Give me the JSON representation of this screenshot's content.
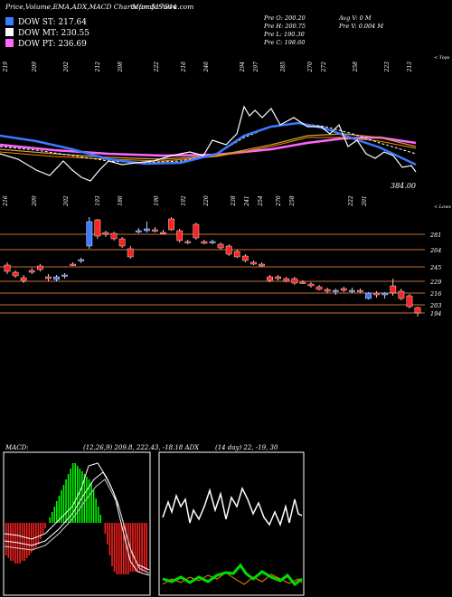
{
  "header": {
    "title": "Price,Volume,EMA,ADX,MACD Charts for 517544",
    "site": "MunafaSutra.com"
  },
  "dow": [
    {
      "label": "DOW ST: 217.64",
      "color": "#3a7bff"
    },
    {
      "label": "DOW MT: 230.55",
      "color": "#ffffff"
    },
    {
      "label": "DOW PT: 236.69",
      "color": "#ff66ff"
    }
  ],
  "stats": {
    "o": "Pre   O: 200.20",
    "h": "Pre   H: 200.75",
    "l": "Pre   L: 190.30",
    "c": "Pre   C: 198.60",
    "avg_v": "Avg V: 0   M",
    "pre_v": "Pre   V: 0.004   M"
  },
  "labels": {
    "tops": "< Tops",
    "lows": "< Lows",
    "price_tag": "384.00",
    "macd": "MACD:",
    "macd_params": "(12,26,9) 209.8, 222.43, -18.18 ADX",
    "adx_params": "(14 day) 22, -19, 30"
  },
  "top_labels": [
    "219",
    "209",
    "202",
    "212",
    "208",
    "222",
    "216",
    "246",
    "294",
    "297",
    "285",
    "270",
    "272",
    "258",
    "223",
    "213"
  ],
  "low_labels": [
    "216",
    "209",
    "202",
    "193",
    "186",
    "190",
    "192",
    "220",
    "238",
    "241",
    "254",
    "270",
    "258",
    "222",
    "201"
  ],
  "chart_data": {
    "type": "candlestick",
    "price_levels": [
      281,
      264,
      245,
      229,
      216,
      203,
      194
    ],
    "ylim": [
      185,
      300
    ],
    "candles": [
      {
        "o": 247,
        "h": 250,
        "l": 237,
        "c": 240
      },
      {
        "o": 239,
        "h": 241,
        "l": 233,
        "c": 235
      },
      {
        "o": 233,
        "h": 236,
        "l": 227,
        "c": 230
      },
      {
        "o": 241,
        "h": 244,
        "l": 237,
        "c": 239
      },
      {
        "o": 246,
        "h": 248,
        "l": 240,
        "c": 242
      },
      {
        "o": 234,
        "h": 237,
        "l": 229,
        "c": 232
      },
      {
        "o": 231,
        "h": 236,
        "l": 229,
        "c": 234
      },
      {
        "o": 235,
        "h": 238,
        "l": 232,
        "c": 236
      },
      {
        "o": 248,
        "h": 250,
        "l": 246,
        "c": 247
      },
      {
        "o": 252,
        "h": 255,
        "l": 249,
        "c": 253
      },
      {
        "o": 268,
        "h": 300,
        "l": 265,
        "c": 295
      },
      {
        "o": 297,
        "h": 298,
        "l": 276,
        "c": 279
      },
      {
        "o": 283,
        "h": 285,
        "l": 278,
        "c": 281
      },
      {
        "o": 282,
        "h": 284,
        "l": 274,
        "c": 276
      },
      {
        "o": 276,
        "h": 278,
        "l": 266,
        "c": 268
      },
      {
        "o": 265,
        "h": 268,
        "l": 254,
        "c": 256
      },
      {
        "o": 284,
        "h": 288,
        "l": 282,
        "c": 285
      },
      {
        "o": 285,
        "h": 295,
        "l": 283,
        "c": 287
      },
      {
        "o": 286,
        "h": 289,
        "l": 283,
        "c": 285
      },
      {
        "o": 283,
        "h": 286,
        "l": 281,
        "c": 282
      },
      {
        "o": 298,
        "h": 300,
        "l": 285,
        "c": 286
      },
      {
        "o": 285,
        "h": 287,
        "l": 272,
        "c": 274
      },
      {
        "o": 273,
        "h": 275,
        "l": 270,
        "c": 272
      },
      {
        "o": 292,
        "h": 294,
        "l": 275,
        "c": 277
      },
      {
        "o": 273,
        "h": 275,
        "l": 270,
        "c": 271
      },
      {
        "o": 272,
        "h": 275,
        "l": 270,
        "c": 273
      },
      {
        "o": 270,
        "h": 272,
        "l": 264,
        "c": 266
      },
      {
        "o": 268,
        "h": 270,
        "l": 257,
        "c": 259
      },
      {
        "o": 262,
        "h": 264,
        "l": 255,
        "c": 256
      },
      {
        "o": 257,
        "h": 259,
        "l": 250,
        "c": 252
      },
      {
        "o": 250,
        "h": 252,
        "l": 247,
        "c": 248
      },
      {
        "o": 248,
        "h": 250,
        "l": 245,
        "c": 246
      },
      {
        "o": 234,
        "h": 236,
        "l": 228,
        "c": 230
      },
      {
        "o": 234,
        "h": 236,
        "l": 230,
        "c": 232
      },
      {
        "o": 232,
        "h": 234,
        "l": 228,
        "c": 229
      },
      {
        "o": 232,
        "h": 234,
        "l": 225,
        "c": 227
      },
      {
        "o": 228,
        "h": 230,
        "l": 226,
        "c": 227
      },
      {
        "o": 226,
        "h": 228,
        "l": 222,
        "c": 224
      },
      {
        "o": 223,
        "h": 225,
        "l": 219,
        "c": 220
      },
      {
        "o": 220,
        "h": 222,
        "l": 216,
        "c": 218
      },
      {
        "o": 218,
        "h": 221,
        "l": 214,
        "c": 219
      },
      {
        "o": 221,
        "h": 223,
        "l": 217,
        "c": 219
      },
      {
        "o": 219,
        "h": 222,
        "l": 216,
        "c": 219
      },
      {
        "o": 219,
        "h": 221,
        "l": 216,
        "c": 218
      },
      {
        "o": 210,
        "h": 217,
        "l": 209,
        "c": 216
      },
      {
        "o": 216,
        "h": 218,
        "l": 211,
        "c": 214
      },
      {
        "o": 214,
        "h": 217,
        "l": 210,
        "c": 216
      },
      {
        "o": 224,
        "h": 232,
        "l": 213,
        "c": 216
      },
      {
        "o": 218,
        "h": 221,
        "l": 208,
        "c": 210
      },
      {
        "o": 213,
        "h": 215,
        "l": 199,
        "c": 201
      },
      {
        "o": 200,
        "h": 201,
        "l": 190,
        "c": 194
      }
    ],
    "macd_hist": [
      -12,
      -13,
      -14,
      -14,
      -15,
      -15,
      -15,
      -14,
      -14,
      -13,
      -12,
      -11,
      -10,
      -9,
      -8,
      -6,
      -4,
      -2,
      0,
      2,
      4,
      6,
      8,
      10,
      12,
      14,
      16,
      18,
      20,
      22,
      22,
      21,
      20,
      19,
      18,
      17,
      16,
      15,
      12,
      9,
      6,
      3,
      0,
      -4,
      -8,
      -12,
      -16,
      -18,
      -19,
      -19,
      -19,
      -19,
      -19,
      -19,
      -18,
      -18,
      -18,
      -18,
      -18,
      -18,
      -18,
      -18
    ]
  }
}
